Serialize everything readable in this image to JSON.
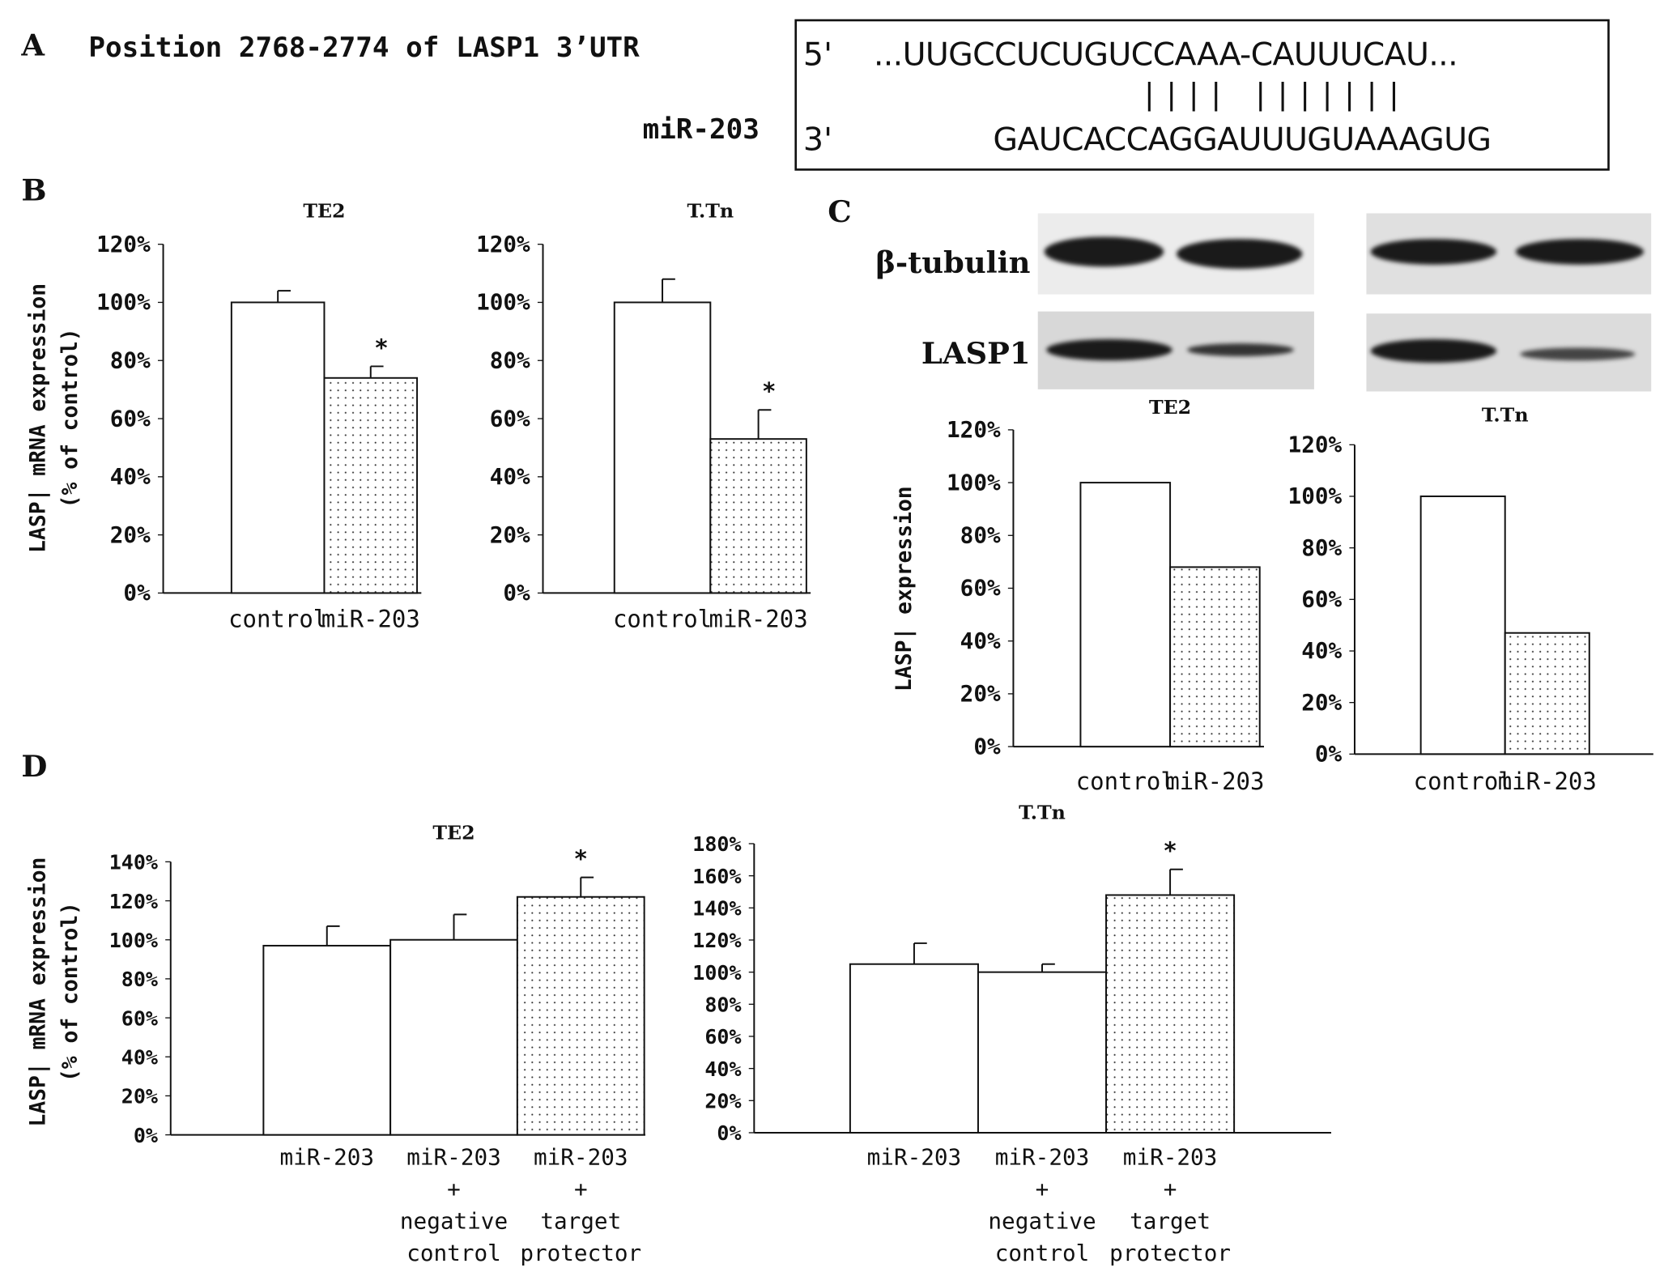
{
  "panels": {
    "a": "A",
    "b": "B",
    "c": "C",
    "d": "D"
  },
  "panel_a": {
    "position_label": "Position 2768-2774 of LASP1 3’UTR",
    "mir_label": "miR-203",
    "five_prime": "5'",
    "utr_seq": "...UUGCCUCUGUCCAAA-CAUUUCAU...",
    "pairing": "||||     |||||||",
    "three_prime": "3'",
    "mir_seq": "GAUCACCAGGAUUUGUAAAGUG"
  },
  "panel_c": {
    "tubulin_label": "β-tubulin",
    "lasp1_label": "LASP1"
  },
  "ylabels": {
    "b": [
      "LASP| mRNA expression",
      "(% of control)"
    ],
    "c": [
      "LASP| expression"
    ],
    "d": [
      "LASP| mRNA expression",
      "(% of control)"
    ]
  },
  "chart_data": [
    {
      "type": "bar",
      "panel": "B",
      "title": "TE2",
      "categories": [
        "control",
        "miR-203"
      ],
      "values": [
        100,
        74
      ],
      "errors": [
        4,
        4
      ],
      "significant": [
        false,
        true
      ],
      "fill": [
        "white",
        "dotted"
      ],
      "ylim": [
        0,
        120
      ],
      "yticks": [
        "0%",
        "20%",
        "40%",
        "60%",
        "80%",
        "100%",
        "120%"
      ]
    },
    {
      "type": "bar",
      "panel": "B",
      "title": "T.Tn",
      "categories": [
        "control",
        "miR-203"
      ],
      "values": [
        100,
        53
      ],
      "errors": [
        8,
        10
      ],
      "significant": [
        false,
        true
      ],
      "fill": [
        "white",
        "dotted"
      ],
      "ylim": [
        0,
        120
      ],
      "yticks": [
        "0%",
        "20%",
        "40%",
        "60%",
        "80%",
        "100%",
        "120%"
      ]
    },
    {
      "type": "bar",
      "panel": "C",
      "title": "TE2",
      "categories": [
        "control",
        "miR-203"
      ],
      "values": [
        100,
        68
      ],
      "errors": [
        0,
        0
      ],
      "significant": [
        false,
        false
      ],
      "fill": [
        "white",
        "dotted"
      ],
      "ylim": [
        0,
        120
      ],
      "yticks": [
        "0%",
        "20%",
        "40%",
        "60%",
        "80%",
        "100%",
        "120%"
      ]
    },
    {
      "type": "bar",
      "panel": "C",
      "title": "T.Tn",
      "categories": [
        "control",
        "miR-203"
      ],
      "values": [
        100,
        47
      ],
      "errors": [
        0,
        0
      ],
      "significant": [
        false,
        false
      ],
      "fill": [
        "white",
        "dotted"
      ],
      "ylim": [
        0,
        120
      ],
      "yticks": [
        "0%",
        "20%",
        "40%",
        "60%",
        "80%",
        "100%",
        "120%"
      ]
    },
    {
      "type": "bar",
      "panel": "D",
      "title": "TE2",
      "categories": [
        [
          "miR-203"
        ],
        [
          "miR-203",
          "+",
          "negative",
          "control"
        ],
        [
          "miR-203",
          "+",
          "target",
          "protector"
        ]
      ],
      "values": [
        97,
        100,
        122
      ],
      "errors": [
        10,
        13,
        10
      ],
      "significant": [
        false,
        false,
        true
      ],
      "fill": [
        "white",
        "white",
        "dotted"
      ],
      "ylim": [
        0,
        140
      ],
      "yticks": [
        "0%",
        "20%",
        "40%",
        "60%",
        "80%",
        "100%",
        "120%",
        "140%"
      ]
    },
    {
      "type": "bar",
      "panel": "D",
      "title": "T.Tn",
      "categories": [
        [
          "miR-203"
        ],
        [
          "miR-203",
          "+",
          "negative",
          "control"
        ],
        [
          "miR-203",
          "+",
          "target",
          "protector"
        ]
      ],
      "values": [
        105,
        100,
        148
      ],
      "errors": [
        13,
        5,
        16
      ],
      "significant": [
        false,
        false,
        true
      ],
      "fill": [
        "white",
        "white",
        "dotted"
      ],
      "ylim": [
        0,
        180
      ],
      "yticks": [
        "0%",
        "20%",
        "40%",
        "60%",
        "80%",
        "100%",
        "120%",
        "140%",
        "160%",
        "180%"
      ]
    }
  ],
  "significance_marker": "*"
}
